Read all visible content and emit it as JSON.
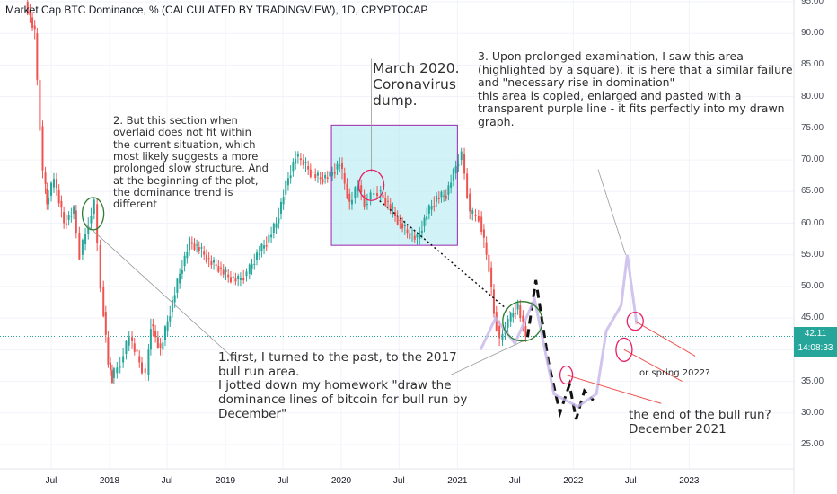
{
  "title": "Market Cap BTC Dominance, % (CALCULATED BY TRADINGVIEW), 1D, CRYPTOCAP",
  "annotations": {
    "covid": "March 2020.\nCoronavirus\ndump.",
    "note3": "3. Upon prolonged examination, I saw this area\n(highlighted by a square). it is here that a similar failure\nand \"necessary rise in domination\"\nthis area is copied, enlarged and pasted with a\ntransparent purple line - it fits perfectly into my drawn\ngraph.",
    "note2": "2. But this section when\noverlaid does not fit within\nthe current situation, which\nmost likely suggests a more\nprolonged slow structure. And\nat the beginning of the plot,\nthe dominance trend is\ndifferent",
    "note1": "1.first, I turned to the past, to the 2017\nbull run area.\nI jotted down my homework \"draw the\ndominance lines of bitcoin for bull run by\nDecember\"",
    "end_bull": "the end of the bull run?\nDecember 2021",
    "spring": "or spring 2022?"
  },
  "price_badge": {
    "value": "42.11",
    "countdown": "14:08:33"
  },
  "chart_data": {
    "type": "line",
    "title": "Market Cap BTC Dominance, % (CALCULATED BY TRADINGVIEW), 1D, CRYPTOCAP",
    "y_ticks": [
      "95.00",
      "90.00",
      "85.00",
      "80.00",
      "75.00",
      "70.00",
      "65.00",
      "60.00",
      "55.00",
      "50.00",
      "45.00",
      "40.00",
      "35.00",
      "30.00",
      "25.00"
    ],
    "x_ticks": [
      "Jul",
      "2018",
      "Jul",
      "2019",
      "Jul",
      "2020",
      "Jul",
      "2021",
      "Jul",
      "2022",
      "Jul",
      "2023"
    ],
    "ylim": [
      22,
      95.5
    ],
    "last_value": 42.11,
    "series": [
      {
        "x": [
          "2017-04-15",
          "2017-05-15",
          "2017-06-10",
          "2017-06-20",
          "2017-07-15",
          "2017-08-15",
          "2017-09-15",
          "2017-10-05",
          "2017-11-01",
          "2017-11-20",
          "2017-12-10",
          "2018-01-01",
          "2018-01-12",
          "2018-02-10",
          "2018-03-10",
          "2018-04-10",
          "2018-05-01",
          "2018-05-15",
          "2018-06-15",
          "2018-07-15",
          "2018-08-15",
          "2018-09-15",
          "2018-10-15",
          "2018-11-15",
          "2018-12-15",
          "2019-01-15",
          "2019-02-15",
          "2019-03-15",
          "2019-04-15",
          "2019-05-15",
          "2019-06-15",
          "2019-07-15",
          "2019-08-15",
          "2019-09-01",
          "2019-10-01",
          "2019-11-01",
          "2019-12-01",
          "2020-01-01",
          "2020-02-01",
          "2020-03-01",
          "2020-03-20",
          "2020-04-10",
          "2020-05-01",
          "2020-06-01",
          "2020-07-01",
          "2020-08-01",
          "2020-09-01",
          "2020-10-01",
          "2020-11-01",
          "2020-12-01",
          "2021-01-01",
          "2021-01-20",
          "2021-02-15",
          "2021-03-15",
          "2021-04-15",
          "2021-05-01",
          "2021-05-20",
          "2021-06-15",
          "2021-07-15",
          "2021-08-10"
        ],
        "values": [
          95,
          90,
          68,
          63,
          67,
          60,
          62,
          55,
          60,
          63,
          50,
          38,
          35.5,
          38,
          42,
          38,
          36,
          44,
          40,
          46,
          52,
          57,
          56,
          54,
          53,
          51.5,
          51,
          52,
          55,
          57,
          60,
          66,
          70.5,
          70,
          68,
          67,
          67.5,
          69.5,
          63,
          66,
          63,
          64.5,
          65,
          63,
          60.5,
          58.5,
          57.5,
          61.5,
          64,
          64.5,
          69,
          71,
          61.5,
          61,
          53,
          46,
          41.5,
          44.5,
          47,
          42.11
        ]
      }
    ],
    "highlight_box": {
      "x": [
        "2019-12-01",
        "2021-01-01"
      ],
      "y": [
        56.5,
        75.5
      ]
    }
  }
}
